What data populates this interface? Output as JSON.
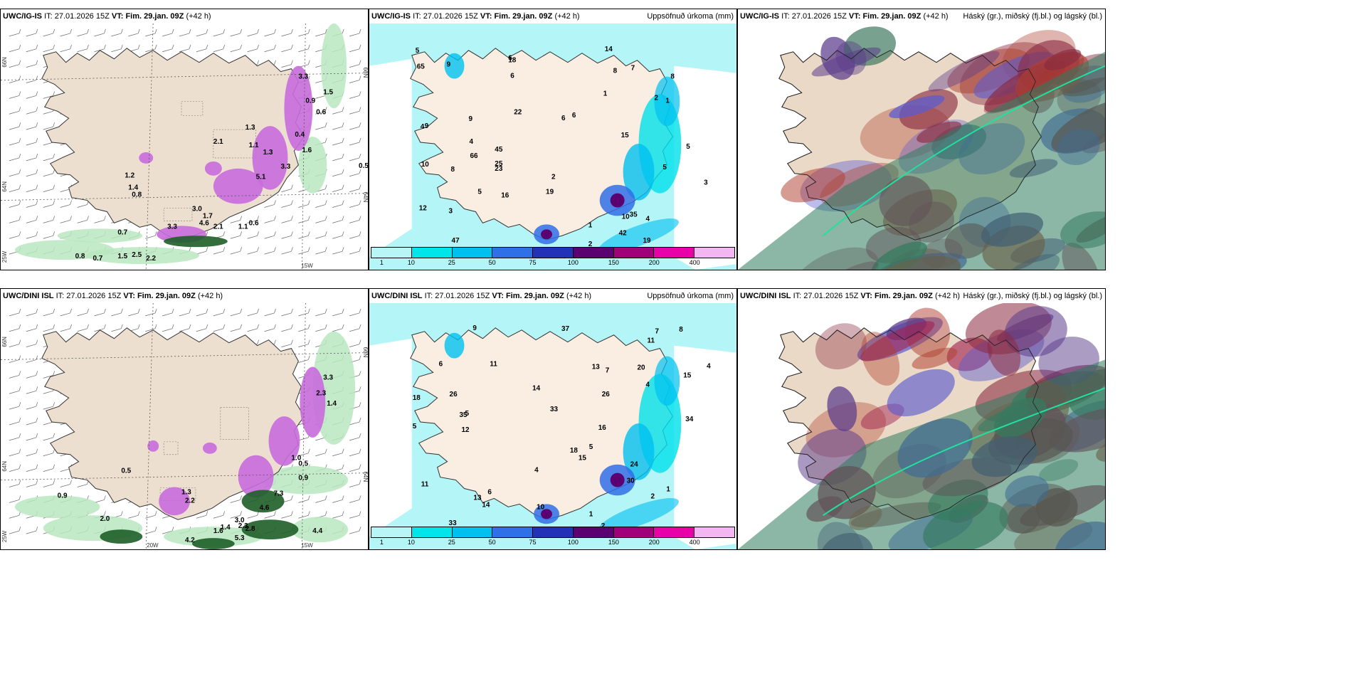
{
  "panels": {
    "p1": {
      "model": "UWC/IG-IS",
      "it_label": "IT:",
      "it": "27.01.2026 15Z",
      "vt_label": "VT:",
      "vt": "Fim. 29.jan. 09Z",
      "lead": "(+42 h)",
      "title": ""
    },
    "p2": {
      "model": "UWC/IG-IS",
      "it_label": "IT:",
      "it": "27.01.2026 15Z",
      "vt_label": "VT:",
      "vt": "Fim. 29.jan. 09Z",
      "lead": "(+42 h)",
      "title": "Uppsöfnuð úrkoma (mm)"
    },
    "p3": {
      "model": "UWC/IG-IS",
      "it_label": "IT:",
      "it": "27.01.2026 15Z",
      "vt_label": "VT:",
      "vt": "Fim. 29.jan. 09Z",
      "lead": "(+42 h)",
      "title": "Háský (gr.), miðský (fj.bl.) og lágský (bl.)"
    },
    "p4": {
      "model": "UWC/DINI ISL",
      "it_label": "IT:",
      "it": "27.01.2026 15Z",
      "vt_label": "VT:",
      "vt": "Fim. 29.jan. 09Z",
      "lead": "(+42 h)",
      "title": ""
    },
    "p5": {
      "model": "UWC/DINI ISL",
      "it_label": "IT:",
      "it": "27.01.2026 15Z",
      "vt_label": "VT:",
      "vt": "Fim. 29.jan. 09Z",
      "lead": "(+42 h)",
      "title": "Uppsöfnuð úrkoma (mm)"
    },
    "p6": {
      "model": "UWC/DINI ISL",
      "it_label": "IT:",
      "it": "27.01.2026 15Z",
      "vt_label": "VT:",
      "vt": "Fim. 29.jan. 09Z",
      "lead": "(+42 h)",
      "title": "Háský (gr.), miðský (fj.bl.) og lágský (bl.)"
    }
  },
  "grid": {
    "lat66": "66N",
    "lat64": "64N",
    "lon25": "25W",
    "lon20": "20W",
    "lon15": "15W"
  },
  "legend": {
    "ticks": [
      "1",
      "10",
      "25",
      "50",
      "75",
      "100",
      "150",
      "200",
      "400"
    ],
    "colors": [
      "#b8f5f7",
      "#00e5ea",
      "#00c0f0",
      "#2f6fe8",
      "#2330b8",
      "#5a0070",
      "#a0007a",
      "#e800a8",
      "#f4b6f2"
    ]
  },
  "snow_labels_top": [
    "3.3",
    "1.5",
    "0.9",
    "0.6",
    "1.3",
    "0.4",
    "1.1",
    "2.1",
    "1.3",
    "1.6",
    "5.1",
    "3.3",
    "1.2",
    "1.4",
    "0.8",
    "3.0",
    "4.6",
    "2.1",
    "3.3",
    "0.7",
    "0.6",
    "0.8",
    "0.7",
    "1.5",
    "2.5",
    "2.2",
    "0.5",
    "1.7",
    "1.1"
  ],
  "snow_labels_bottom": [
    "3.3",
    "2.3",
    "1.4",
    "0.5",
    "1.0",
    "0.5",
    "0.9",
    "2.0",
    "7.3",
    "4.6",
    "3.0",
    "2.3",
    "2.8",
    "1.6",
    "5.3",
    "4.2",
    "1.4",
    "2.2",
    "1.3",
    "4.4",
    "0.9"
  ],
  "precip_labels_top": [
    "1",
    "14",
    "6",
    "12",
    "2",
    "5",
    "6",
    "4",
    "9",
    "1",
    "4",
    "16",
    "5",
    "15",
    "6",
    "8",
    "25",
    "19",
    "10",
    "5",
    "5",
    "7",
    "35",
    "22",
    "18",
    "23",
    "19",
    "3",
    "2",
    "1",
    "2",
    "8",
    "45",
    "42",
    "66",
    "65",
    "47",
    "10",
    "9",
    "9",
    "6",
    "8",
    "3",
    "4"
  ],
  "precip_labels_bottom": [
    "7",
    "18",
    "12",
    "10",
    "4",
    "1",
    "5",
    "4",
    "6",
    "11",
    "13",
    "9",
    "5",
    "8",
    "18",
    "24",
    "16",
    "14",
    "11",
    "33",
    "35",
    "37",
    "30",
    "26",
    "13",
    "20",
    "26",
    "14",
    "15",
    "11",
    "34",
    "33",
    "2",
    "1",
    "2",
    "4",
    "5",
    "15",
    "7",
    "6"
  ]
}
